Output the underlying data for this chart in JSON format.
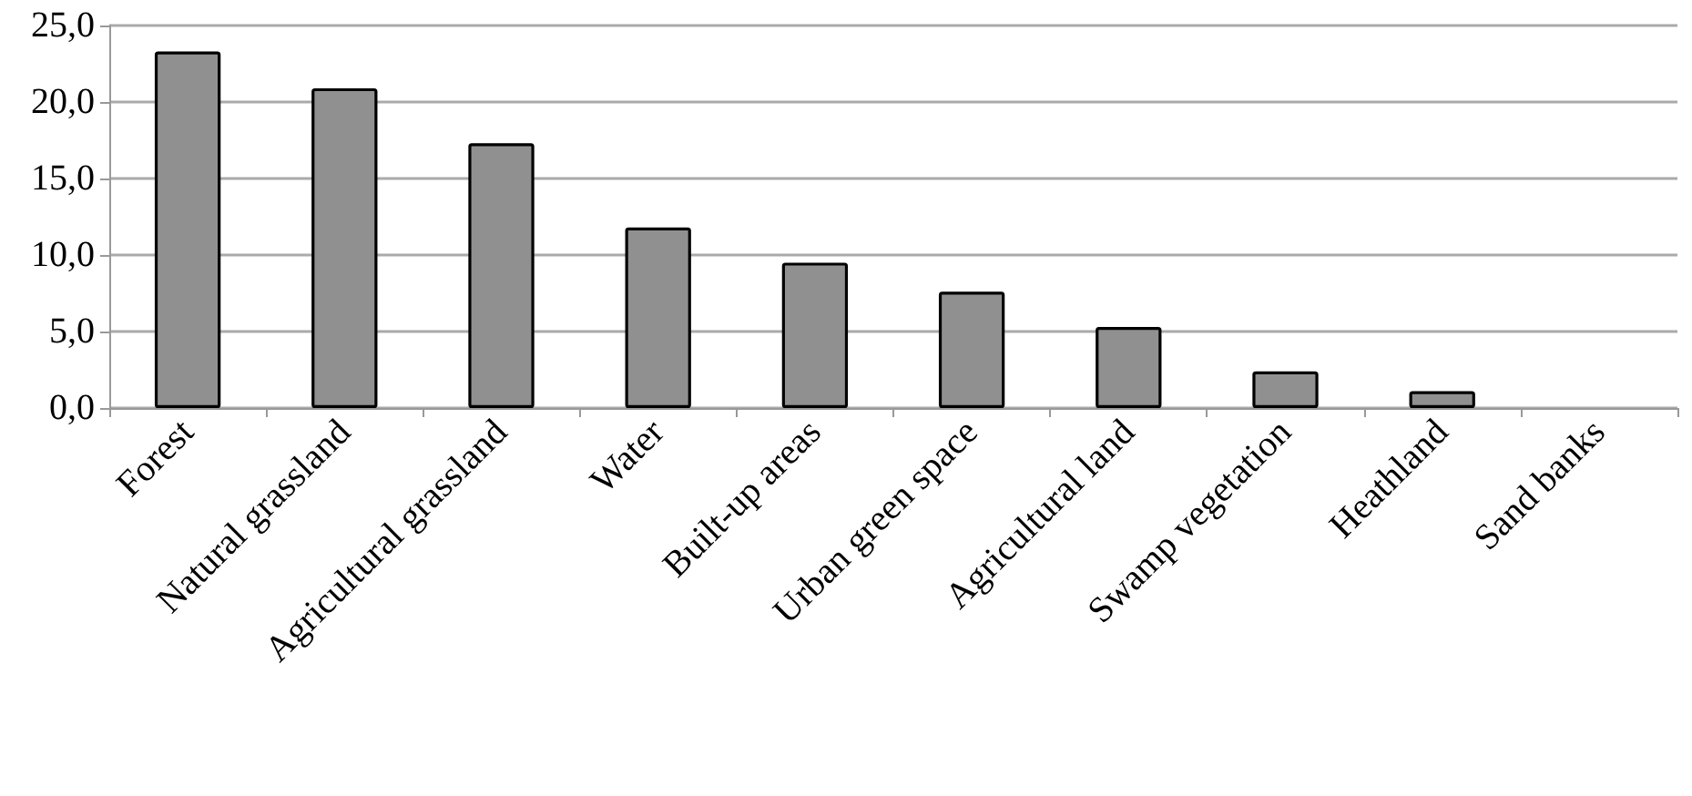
{
  "chart_data": {
    "type": "bar",
    "categories": [
      "Forest",
      "Natural grassland",
      "Agricultural grassland",
      "Water",
      "Built-up areas",
      "Urban green space",
      "Agricultural land",
      "Swamp vegetation",
      "Heathland",
      "Sand banks"
    ],
    "values": [
      23.3,
      20.9,
      17.3,
      11.8,
      9.5,
      7.6,
      5.3,
      2.4,
      1.1,
      0
    ],
    "color": "#909090",
    "ylim": [
      0,
      25
    ],
    "yticks": [
      {
        "value": 0,
        "label": "0,0"
      },
      {
        "value": 5,
        "label": "5,0"
      },
      {
        "value": 10,
        "label": "10,0"
      },
      {
        "value": 15,
        "label": "15,0"
      },
      {
        "value": 20,
        "label": "20,0"
      },
      {
        "value": 25,
        "label": "25,0"
      }
    ],
    "grid": "y"
  }
}
